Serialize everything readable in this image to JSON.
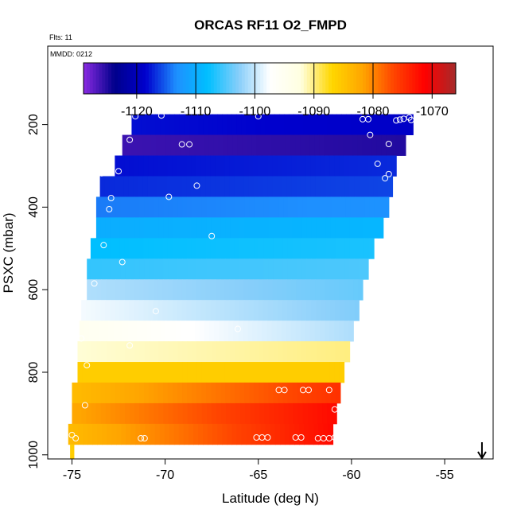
{
  "chart_data": {
    "type": "heatmap",
    "title": "ORCAS RF11 O2_FMPD",
    "flight_note": "Flts: 11",
    "date_note": "MMDD: 0212",
    "xlabel": "Latitude (deg N)",
    "ylabel": "PSXC (mbar)",
    "xlim": [
      -76.3,
      -52.4
    ],
    "ylim": [
      1010,
      10
    ],
    "x_ticks": [
      -75,
      -70,
      -65,
      -60,
      -55
    ],
    "x_tick_labels": [
      "-75",
      "-70",
      "-65",
      "-60",
      "-55"
    ],
    "y_ticks": [
      200,
      400,
      600,
      800,
      1000
    ],
    "y_tick_labels": [
      "200",
      "400",
      "600",
      "800",
      "1000"
    ],
    "colorbar": {
      "range": [
        -1129,
        -1066
      ],
      "ticks": [
        -1120,
        -1110,
        -1100,
        -1090,
        -1080,
        -1070
      ],
      "tick_labels": [
        "-1120",
        "-1110",
        "-1100",
        "-1090",
        "-1080",
        "-1070"
      ],
      "colors": [
        "#8a2be2",
        "#00008b",
        "#0000cd",
        "#1e90ff",
        "#00bfff",
        "#87cefa",
        "#ffffff",
        "#ffffe0",
        "#ffd700",
        "#ffa500",
        "#ff4500",
        "#ff0000",
        "#a52a2a"
      ]
    },
    "bands": [
      {
        "p_top": 175,
        "p_bot": 225,
        "lat_start": -71.8,
        "lat_end": -56.7,
        "value_start": -1118,
        "value_end": -1119
      },
      {
        "p_top": 225,
        "p_bot": 275,
        "lat_start": -72.3,
        "lat_end": -57.1,
        "value_start": -1126,
        "value_end": -1125
      },
      {
        "p_top": 275,
        "p_bot": 325,
        "lat_start": -72.7,
        "lat_end": -57.6,
        "value_start": -1118,
        "value_end": -1117
      },
      {
        "p_top": 325,
        "p_bot": 375,
        "lat_start": -73.5,
        "lat_end": -57.8,
        "value_start": -1117,
        "value_end": -1116
      },
      {
        "p_top": 375,
        "p_bot": 425,
        "lat_start": -73.7,
        "lat_end": -58.0,
        "value_start": -1114,
        "value_end": -1113
      },
      {
        "p_top": 425,
        "p_bot": 475,
        "lat_start": -73.7,
        "lat_end": -58.3,
        "value_start": -1110,
        "value_end": -1109
      },
      {
        "p_top": 475,
        "p_bot": 525,
        "lat_start": -74.0,
        "lat_end": -58.8,
        "value_start": -1108,
        "value_end": -1107
      },
      {
        "p_top": 525,
        "p_bot": 575,
        "lat_start": -74.2,
        "lat_end": -59.1,
        "value_start": -1106,
        "value_end": -1105
      },
      {
        "p_top": 575,
        "p_bot": 625,
        "lat_start": -74.2,
        "lat_end": -59.4,
        "value_start": -1101,
        "value_end": -1104
      },
      {
        "p_top": 625,
        "p_bot": 675,
        "lat_start": -74.5,
        "lat_end": -59.6,
        "value_start": -1098,
        "value_end": -1103
      },
      {
        "p_top": 675,
        "p_bot": 725,
        "lat_start": -74.6,
        "lat_end": -59.9,
        "value_start": -1095,
        "value_end": -1101
      },
      {
        "p_top": 725,
        "p_bot": 775,
        "lat_start": -74.7,
        "lat_end": -60.1,
        "value_start": -1092,
        "value_end": -1090
      },
      {
        "p_top": 775,
        "p_bot": 825,
        "lat_start": -74.7,
        "lat_end": -60.4,
        "value_start": -1086,
        "value_end": -1086
      },
      {
        "p_top": 825,
        "p_bot": 875,
        "lat_start": -75.0,
        "lat_end": -60.6,
        "value_start": -1084,
        "value_end": -1075
      },
      {
        "p_top": 875,
        "p_bot": 925,
        "lat_start": -75.0,
        "lat_end": -60.8,
        "value_start": -1082,
        "value_end": -1072
      },
      {
        "p_top": 925,
        "p_bot": 975,
        "lat_start": -75.2,
        "lat_end": -61.0,
        "value_start": -1084,
        "value_end": -1072
      },
      {
        "p_top": 975,
        "p_bot": 1010,
        "lat_start": -75.1,
        "lat_end": -74.9,
        "value_start": -1086,
        "value_end": -1086
      }
    ],
    "points": [
      [
        -71.6,
        180
      ],
      [
        -70.2,
        178
      ],
      [
        -65.0,
        180
      ],
      [
        -59.4,
        187
      ],
      [
        -59.1,
        187
      ],
      [
        -57.6,
        190
      ],
      [
        -57.4,
        188
      ],
      [
        -57.2,
        186
      ],
      [
        -56.9,
        183
      ],
      [
        -56.8,
        189
      ],
      [
        -71.9,
        237
      ],
      [
        -69.1,
        248
      ],
      [
        -68.7,
        248
      ],
      [
        -59.0,
        225
      ],
      [
        -58.0,
        247
      ],
      [
        -72.5,
        313
      ],
      [
        -73.4,
        318
      ],
      [
        -68.3,
        348
      ],
      [
        -58.6,
        295
      ],
      [
        -58.2,
        330
      ],
      [
        -58.0,
        320
      ],
      [
        -73.8,
        365
      ],
      [
        -72.9,
        378
      ],
      [
        -69.8,
        375
      ],
      [
        -73.0,
        405
      ],
      [
        -67.5,
        470
      ],
      [
        -73.3,
        492
      ],
      [
        -72.3,
        533
      ],
      [
        -73.8,
        585
      ],
      [
        -70.5,
        652
      ],
      [
        -66.1,
        695
      ],
      [
        -74.5,
        718
      ],
      [
        -71.9,
        735
      ],
      [
        -74.2,
        783
      ],
      [
        -63.9,
        843
      ],
      [
        -63.6,
        843
      ],
      [
        -62.6,
        843
      ],
      [
        -62.3,
        843
      ],
      [
        -61.2,
        843
      ],
      [
        -74.3,
        880
      ],
      [
        -60.9,
        890
      ],
      [
        -75.0,
        952
      ],
      [
        -74.8,
        960
      ],
      [
        -71.3,
        960
      ],
      [
        -71.1,
        960
      ],
      [
        -65.1,
        958
      ],
      [
        -64.8,
        958
      ],
      [
        -64.5,
        958
      ],
      [
        -63.0,
        958
      ],
      [
        -62.7,
        958
      ],
      [
        -61.8,
        960
      ],
      [
        -61.5,
        960
      ],
      [
        -61.2,
        960
      ],
      [
        -60.9,
        958
      ]
    ],
    "arrow": {
      "lat": -53.0,
      "direction": "down"
    }
  }
}
